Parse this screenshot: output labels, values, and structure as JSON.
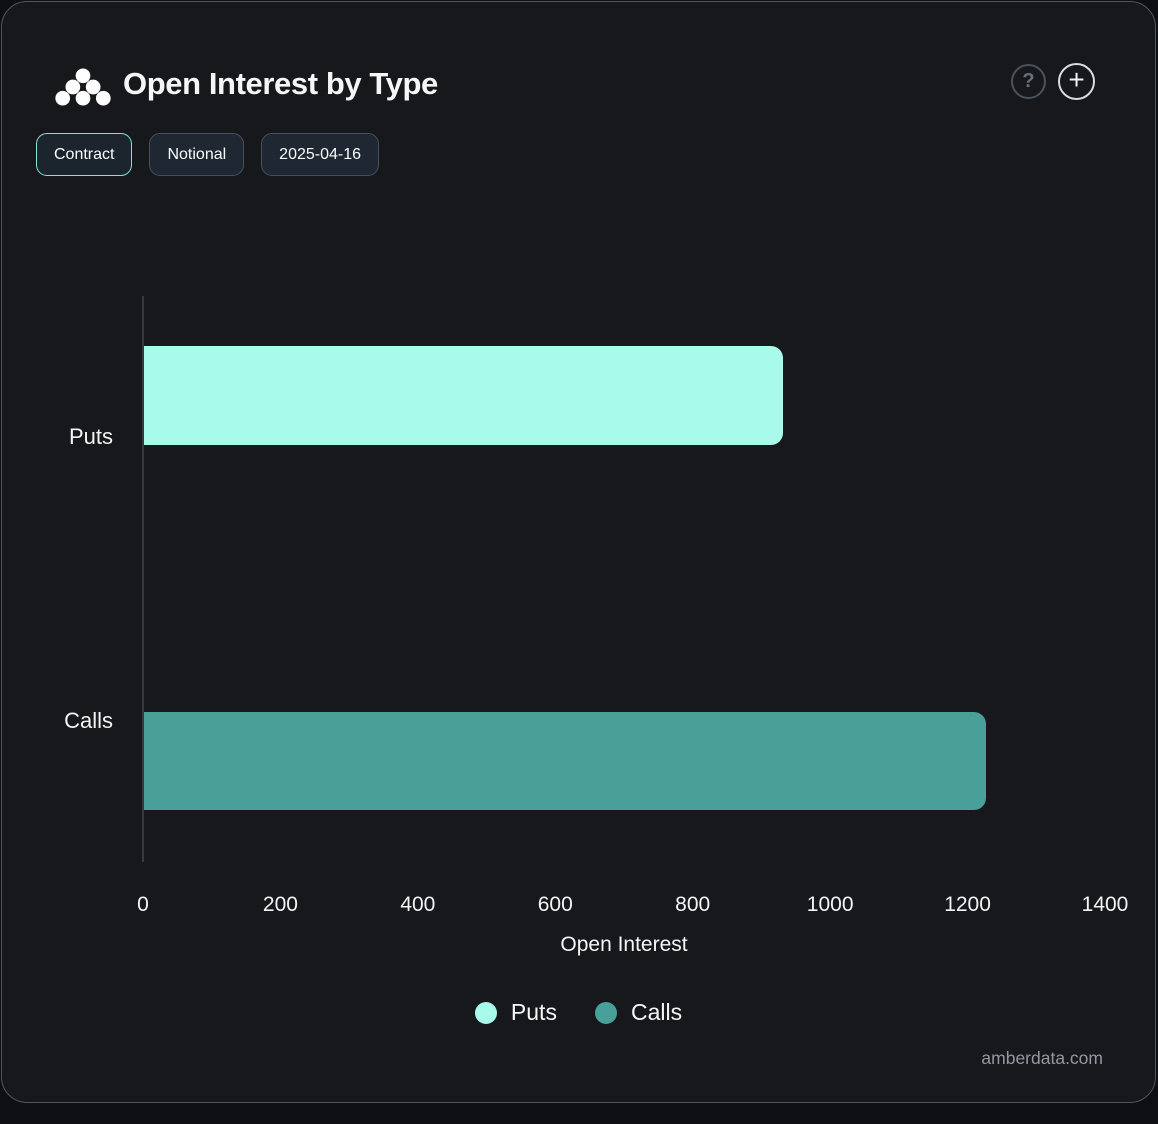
{
  "header": {
    "title": "Open Interest by Type",
    "icons": {
      "logo": "amberdata-logo",
      "help": "?",
      "add": "+"
    }
  },
  "toolbar": {
    "buttons": [
      {
        "label": "Contract",
        "active": true
      },
      {
        "label": "Notional",
        "active": false
      },
      {
        "label": "2025-04-16",
        "active": false
      }
    ]
  },
  "chart_data": {
    "type": "bar",
    "orientation": "horizontal",
    "title": "Open Interest by Type",
    "categories": [
      "Puts",
      "Calls"
    ],
    "series": [
      {
        "name": "Puts",
        "color": "#a8faea",
        "values": [
          930,
          null
        ]
      },
      {
        "name": "Calls",
        "color": "#48a099",
        "values": [
          null,
          1225
        ]
      }
    ],
    "xlabel": "Open Interest",
    "xlim": [
      0,
      1400
    ],
    "xticks": [
      "0",
      "200",
      "400",
      "600",
      "800",
      "1000",
      "1200",
      "1400"
    ],
    "grid": false,
    "legend": {
      "position": "bottom",
      "entries": [
        {
          "label": "Puts",
          "color": "#a8faea"
        },
        {
          "label": "Calls",
          "color": "#48a099"
        }
      ]
    }
  },
  "footer": {
    "watermark": "amberdata.com"
  }
}
